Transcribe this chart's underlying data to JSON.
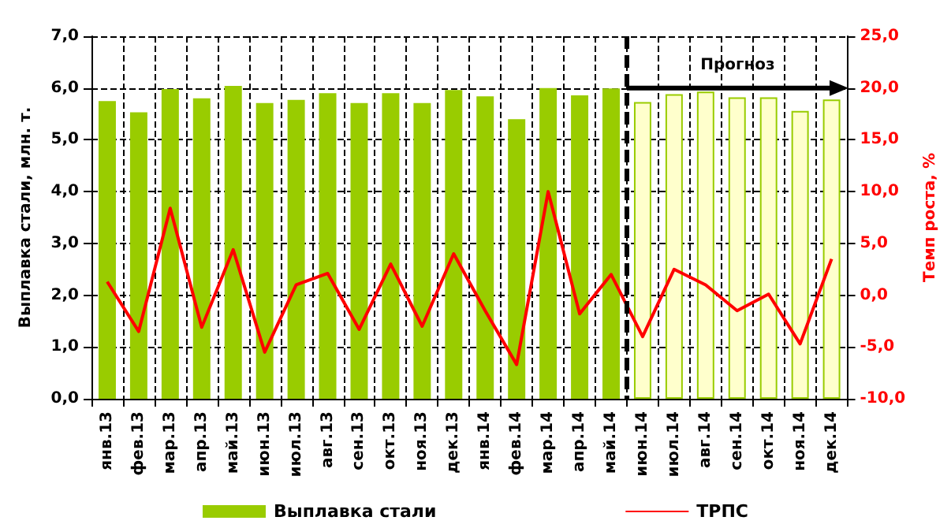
{
  "chart_data": {
    "type": "bar",
    "ylabel": "Выплавка стали, млн. т.",
    "y2label": "Темп роста, %",
    "categories": [
      "янв.13",
      "фев.13",
      "мар.13",
      "апр.13",
      "май.13",
      "июн.13",
      "июл.13",
      "авг.13",
      "сен.13",
      "окт.13",
      "ноя.13",
      "дек.13",
      "янв.14",
      "фев.14",
      "мар.14",
      "апр.14",
      "май.14",
      "июн.14",
      "июл.14",
      "авг.14",
      "сен.14",
      "окт.14",
      "ноя.14",
      "дек.14"
    ],
    "series": [
      {
        "name": "Выплавка стали",
        "color": "#99cc00",
        "colors": [
          "#99cc00",
          "#99cc00",
          "#99cc00",
          "#99cc00",
          "#99cc00",
          "#99cc00",
          "#99cc00",
          "#99cc00",
          "#99cc00",
          "#99cc00",
          "#99cc00",
          "#99cc00",
          "#99cc00",
          "#99cc00",
          "#99cc00",
          "#99cc00",
          "#99cc00",
          "#ffffcc",
          "#ffffcc",
          "#ffffcc",
          "#ffffcc",
          "#ffffcc",
          "#ffffcc",
          "#ffffcc"
        ],
        "values": [
          5.75,
          5.53,
          5.98,
          5.8,
          6.04,
          5.71,
          5.77,
          5.9,
          5.71,
          5.9,
          5.71,
          5.96,
          5.84,
          5.4,
          6.0,
          5.86,
          5.99,
          5.73,
          5.88,
          5.93,
          5.82,
          5.82,
          5.56,
          5.78
        ]
      },
      {
        "name": "ТРПС",
        "type": "line",
        "axis": "y2",
        "color": "#ff0000",
        "values": [
          1.3,
          -3.5,
          8.4,
          -3.1,
          4.4,
          -5.5,
          1.0,
          2.1,
          -3.3,
          3.0,
          -3.0,
          4.0,
          -1.5,
          -6.7,
          10.0,
          -1.8,
          2.0,
          -4.0,
          2.5,
          1.0,
          -1.5,
          0.1,
          -4.7,
          3.5
        ]
      }
    ],
    "ylim": [
      0,
      7
    ],
    "yticks": [
      {
        "value": 0,
        "label": "0,0"
      },
      {
        "value": 1,
        "label": "1,0"
      },
      {
        "value": 2,
        "label": "2,0"
      },
      {
        "value": 3,
        "label": "3,0"
      },
      {
        "value": 4,
        "label": "4,0"
      },
      {
        "value": 5,
        "label": "5,0"
      },
      {
        "value": 6,
        "label": "6,0"
      },
      {
        "value": 7,
        "label": "7,0"
      }
    ],
    "y2lim": [
      -10,
      25
    ],
    "y2ticks": [
      {
        "value": -10,
        "label": "-10,0"
      },
      {
        "value": -5,
        "label": "-5,0"
      },
      {
        "value": 0,
        "label": "0,0"
      },
      {
        "value": 5,
        "label": "5,0"
      },
      {
        "value": 10,
        "label": "10,0"
      },
      {
        "value": 15,
        "label": "15,0"
      },
      {
        "value": 20,
        "label": "20,0"
      },
      {
        "value": 25,
        "label": "25,0"
      }
    ],
    "ref_lines": [
      {
        "axis": "x",
        "value": "июн.14",
        "color": "#000000",
        "line_style": "dashed"
      }
    ],
    "annotations": [
      "Прогноз"
    ],
    "grid": true,
    "legend": "bottom",
    "marker": "none",
    "line_style": "solid"
  }
}
